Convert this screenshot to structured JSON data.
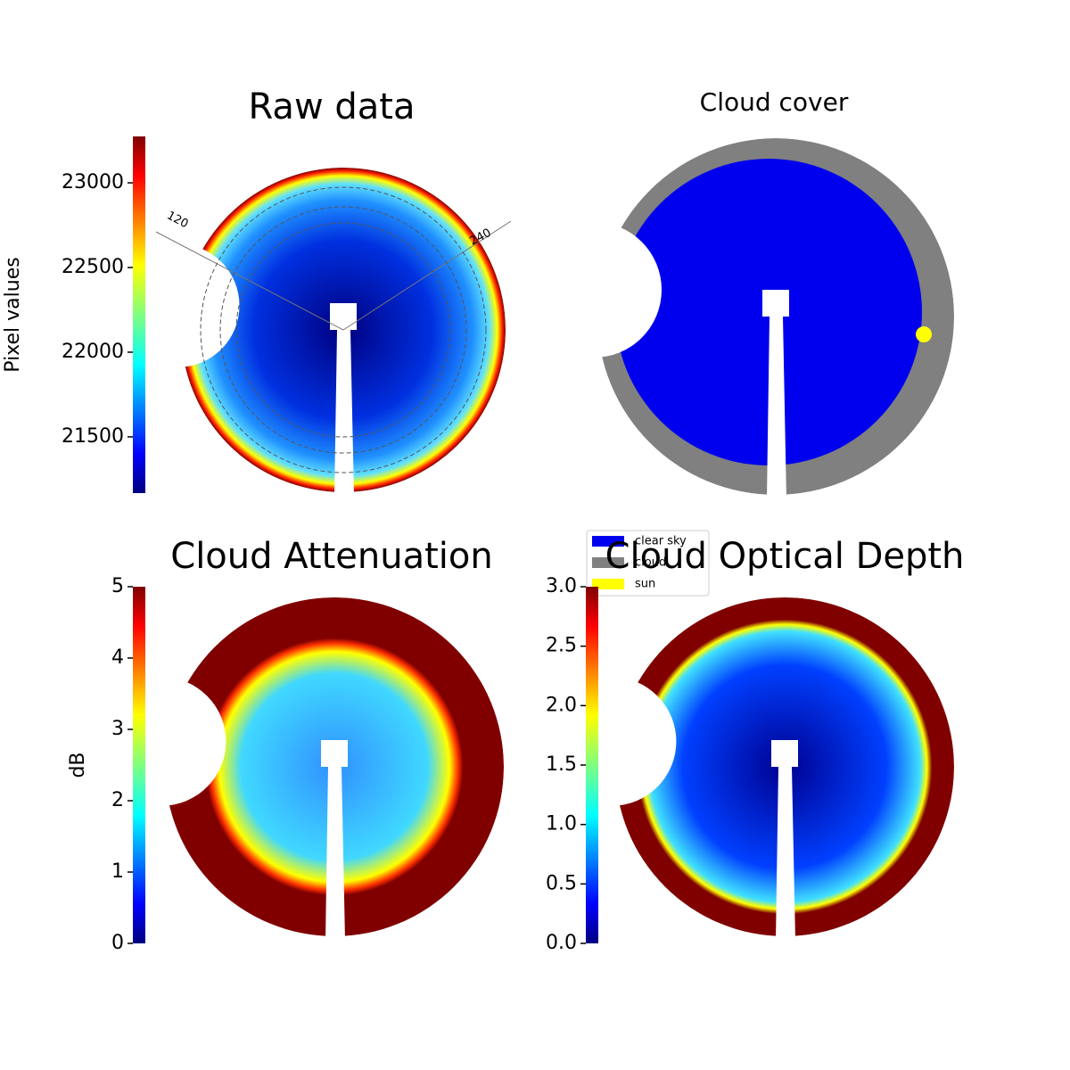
{
  "chart_data": [
    {
      "type": "image",
      "title": "Raw data",
      "colorbar": {
        "label": "Pixel values",
        "lim": [
          21168,
          23274
        ],
        "ticks": [
          21500,
          22000,
          22500,
          23000
        ]
      },
      "annotations": [
        "120",
        "240"
      ]
    },
    {
      "type": "classification",
      "title": "Cloud cover",
      "legend": {
        "categories": [
          "clear sky",
          "cloud",
          "sun"
        ],
        "colors": [
          "#0000ee",
          "#808080",
          "#ffff00"
        ]
      }
    },
    {
      "type": "image",
      "title": "Cloud Attenuation",
      "colorbar": {
        "label": "dB",
        "lim": [
          0,
          5
        ],
        "ticks": [
          0,
          1,
          2,
          3,
          4,
          5
        ]
      }
    },
    {
      "type": "image",
      "title": "Cloud Optical Depth",
      "colorbar": {
        "lim": [
          0,
          3
        ],
        "ticks": [
          {
            "value": 0,
            "label": "0.0"
          },
          {
            "value": 0.5,
            "label": "0.5"
          },
          {
            "value": 1,
            "label": "1.0"
          },
          {
            "value": 1.5,
            "label": "1.5"
          },
          {
            "value": 2,
            "label": "2.0"
          },
          {
            "value": 2.5,
            "label": "2.5"
          },
          {
            "value": 3,
            "label": "3.0"
          }
        ]
      }
    }
  ]
}
